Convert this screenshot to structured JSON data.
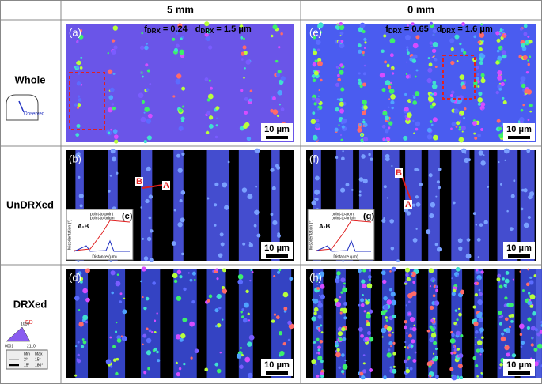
{
  "header": {
    "columns": [
      "5 mm",
      "0 mm"
    ]
  },
  "rows": [
    "Whole",
    "UnDRXed",
    "DRXed"
  ],
  "stats": [
    {
      "f": "f",
      "f_sub": "DRX",
      "f_value": " = 0.24",
      "d": "d",
      "d_sub": "DRX",
      "d_value": " = 1.5 μm"
    },
    {
      "f": "f",
      "f_sub": "DRX",
      "f_value": " = 0.65",
      "d": "d",
      "d_sub": "DRX",
      "d_value": " = 1.6 μm"
    }
  ],
  "panels": [
    {
      "label": "(a)",
      "scale": "10 μm"
    },
    {
      "label": "(e)",
      "scale": "10 μm"
    },
    {
      "label": "(b)",
      "scale": "10 μm"
    },
    {
      "label": "(f)",
      "scale": "10 μm"
    },
    {
      "label": "(d)",
      "scale": "10 μm"
    },
    {
      "label": "(h)",
      "scale": "10 μm"
    }
  ],
  "points": [
    {
      "a": "A",
      "b": "B"
    },
    {
      "a": "A",
      "b": "B"
    }
  ],
  "insets": [
    {
      "label": "(c)",
      "title": "A-B",
      "xlabel": "Distance (μm)",
      "ylabel": "Misorientation (°)",
      "legend": [
        "point-to-point",
        "point-to-origin"
      ]
    },
    {
      "label": "(g)",
      "title": "A-B",
      "xlabel": "Distance (μm)",
      "ylabel": "Misorientation (°)",
      "legend": [
        "point-to-point",
        "point-to-origin"
      ]
    }
  ],
  "schematic": {
    "label": "Observed"
  },
  "legend": {
    "axis": "ED",
    "poles": [
      "0001",
      "1010",
      "2110"
    ],
    "table": {
      "header": [
        "Min",
        "Max"
      ],
      "rows": [
        [
          "2°",
          "15°"
        ],
        [
          "15°",
          "180°"
        ]
      ]
    }
  }
}
